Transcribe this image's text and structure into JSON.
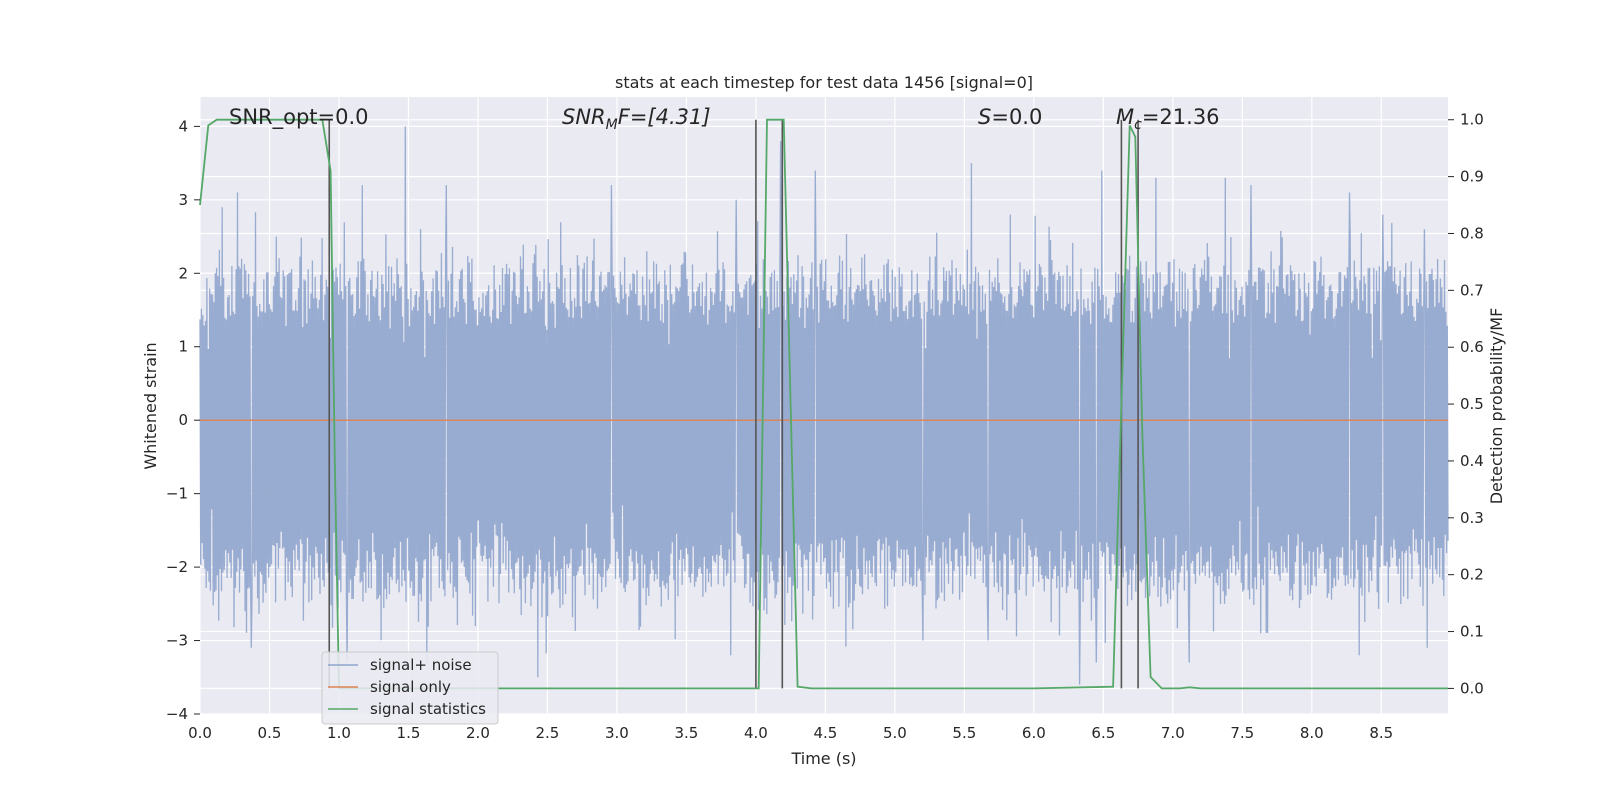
{
  "chart_data": {
    "type": "line",
    "title": "stats at each timestep for test data 1456 [signal=0]",
    "xlabel": "Time (s)",
    "ylabel": "Whitened strain",
    "ylabel_right": "Detection probability/MF",
    "xlim": [
      0.0,
      8.98
    ],
    "ylim": [
      -4.0,
      4.4
    ],
    "ylim_right": [
      -0.045,
      1.04
    ],
    "x_ticks": [
      "0.0",
      "0.5",
      "1.0",
      "1.5",
      "2.0",
      "2.5",
      "3.0",
      "3.5",
      "4.0",
      "4.5",
      "5.0",
      "5.5",
      "6.0",
      "6.5",
      "7.0",
      "7.5",
      "8.0",
      "8.5"
    ],
    "y_ticks": [
      "−4",
      "−3",
      "−2",
      "−1",
      "0",
      "1",
      "2",
      "3",
      "4"
    ],
    "y_ticks_right": [
      "0.0",
      "0.1",
      "0.2",
      "0.3",
      "0.4",
      "0.5",
      "0.6",
      "0.7",
      "0.8",
      "0.9",
      "1.0"
    ],
    "grid": true,
    "legend_position": "lower-left",
    "annotations": {
      "snr_opt": "SNR_opt=0.0",
      "snr_mf_main": "SNR",
      "snr_mf_sub": "M",
      "snr_mf_rest": "F=[4.31]",
      "s_main": "S",
      "s_rest": "=0.0",
      "mc_main": "M",
      "mc_sub": "c",
      "mc_rest": "=21.36"
    },
    "series": [
      {
        "name": "signal+ noise",
        "color": "#8fa4cc",
        "description_level": "noise",
        "typical_min": -2.2,
        "typical_max": 1.9,
        "spikes_up": [
          [
            0.16,
            2.9
          ],
          [
            0.27,
            3.1
          ],
          [
            0.55,
            2.5
          ],
          [
            1.17,
            3.2
          ],
          [
            1.48,
            4.0
          ],
          [
            1.77,
            3.2
          ],
          [
            2.96,
            3.2
          ],
          [
            3.86,
            3.0
          ],
          [
            4.18,
            3.8
          ],
          [
            4.43,
            3.4
          ],
          [
            5.55,
            3.5
          ],
          [
            5.83,
            2.8
          ],
          [
            6.49,
            3.4
          ],
          [
            6.88,
            3.3
          ],
          [
            7.38,
            3.3
          ],
          [
            7.56,
            3.2
          ],
          [
            8.27,
            3.1
          ],
          [
            8.51,
            2.8
          ],
          [
            8.81,
            2.6
          ]
        ],
        "spikes_down": [
          [
            0.37,
            -3.1
          ],
          [
            1.06,
            -3.3
          ],
          [
            1.63,
            -3.3
          ],
          [
            2.43,
            -3.5
          ],
          [
            3.82,
            -3.2
          ],
          [
            5.2,
            -3.0
          ],
          [
            5.67,
            -3.0
          ],
          [
            6.33,
            -3.6
          ],
          [
            6.45,
            -3.3
          ],
          [
            7.12,
            -3.3
          ],
          [
            7.63,
            -2.9
          ],
          [
            8.34,
            -3.2
          ],
          [
            8.83,
            -3.1
          ]
        ]
      },
      {
        "name": "signal only",
        "color": "#dd8452",
        "x": [
          0.0,
          8.98
        ],
        "y": [
          0.0,
          0.0
        ]
      },
      {
        "name": "signal statistics",
        "color": "#55a868",
        "axis": "right",
        "x": [
          0.0,
          0.06,
          0.12,
          0.2,
          0.5,
          0.88,
          0.94,
          0.97,
          1.0,
          1.2,
          2.0,
          3.5,
          3.98,
          4.02,
          4.08,
          4.15,
          4.2,
          4.25,
          4.3,
          4.4,
          5.0,
          6.0,
          6.57,
          6.63,
          6.69,
          6.73,
          6.78,
          6.84,
          6.92,
          7.05,
          7.12,
          7.2,
          8.0,
          8.98
        ],
        "y": [
          0.85,
          0.99,
          1.0,
          1.0,
          1.0,
          1.0,
          0.91,
          0.4,
          0.0,
          0.0,
          0.0,
          0.0,
          0.0,
          0.0,
          1.0,
          1.0,
          1.0,
          0.5,
          0.003,
          0.0,
          0.0,
          0.0,
          0.003,
          0.5,
          0.99,
          0.97,
          0.45,
          0.02,
          0.0,
          0.0,
          0.002,
          0.0,
          0.0,
          0.0
        ]
      }
    ],
    "vlines": [
      0.93,
      4.0,
      4.19,
      6.63,
      6.75
    ]
  }
}
